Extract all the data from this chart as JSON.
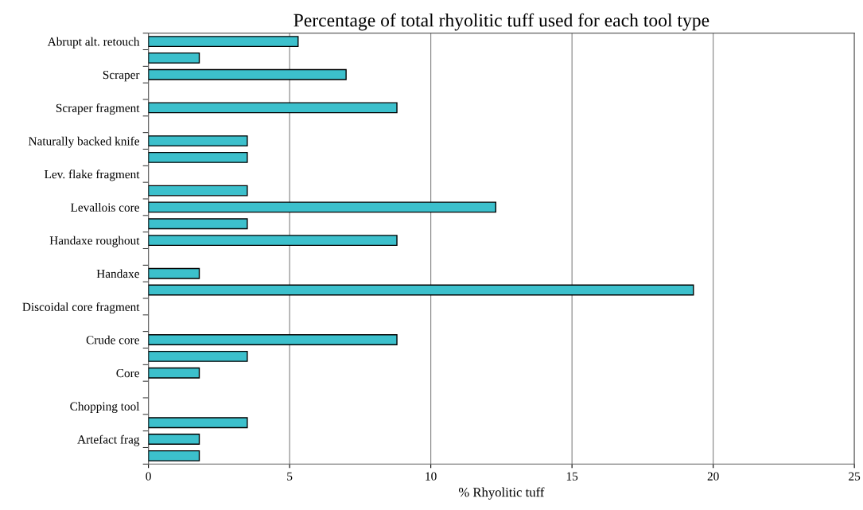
{
  "chart_data": {
    "type": "bar",
    "orientation": "horizontal",
    "title": "Percentage of total rhyolitic tuff used for each tool type",
    "xlabel": "% Rhyolitic tuff",
    "categories": [
      "Abrupt alt. retouch",
      null,
      "Scraper",
      null,
      "Scraper fragment",
      null,
      "Naturally backed knife",
      null,
      "Lev. flake fragment",
      null,
      "Levallois core",
      null,
      "Handaxe roughout",
      null,
      "Handaxe",
      null,
      "Discoidal core fragment",
      null,
      "Crude core",
      null,
      "Core",
      null,
      "Chopping tool",
      null,
      "Artefact frag",
      null
    ],
    "values": [
      5.3,
      1.8,
      7.0,
      null,
      8.8,
      null,
      3.5,
      3.5,
      null,
      3.5,
      12.3,
      3.5,
      8.8,
      null,
      1.8,
      19.3,
      null,
      null,
      8.8,
      3.5,
      1.8,
      null,
      null,
      3.5,
      1.8,
      1.8
    ],
    "color": "#3cc0cc",
    "xlim": [
      0,
      25
    ],
    "xticks": [
      0,
      5,
      10,
      15,
      20,
      25
    ],
    "grid": "x",
    "legend": false
  }
}
